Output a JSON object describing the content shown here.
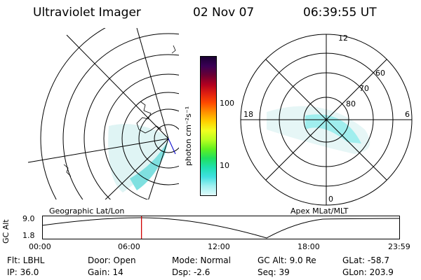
{
  "header": {
    "title": "Ultraviolet Imager",
    "date": "02 Nov 07",
    "time": "06:39:55 UT"
  },
  "colorbar": {
    "unit_label": "photon cm⁻²s⁻¹",
    "ticks": [
      "100",
      "10"
    ],
    "colors": [
      "#1a0033",
      "#3a0055",
      "#6a0033",
      "#b00020",
      "#e02010",
      "#ff4a00",
      "#ff9000",
      "#ffcf00",
      "#f0ff20",
      "#b8ff20",
      "#60f020",
      "#20e060",
      "#20e0b0",
      "#40e0e0",
      "#a0f0f0",
      "#e0fafa"
    ]
  },
  "left_map": {
    "label": "Geographic Lat/Lon"
  },
  "right_map": {
    "label": "Apex  MLat/MLT",
    "mlt_labels": {
      "top": "12",
      "left": "18",
      "right": "6",
      "bottom": "0"
    },
    "mlat_labels": [
      "60",
      "70",
      "80"
    ]
  },
  "alt_plot": {
    "ylabel": "GC Alt",
    "y_ticks": [
      "9.0",
      "1.8"
    ],
    "x_ticks": [
      "00:00",
      "06:00",
      "12:00",
      "18:00",
      "23:59"
    ],
    "current_time_marker_hours": 6.665
  },
  "footer": {
    "filter": "Flt: LBHL",
    "ip": "IP: 36.0",
    "door": "Door: Open",
    "gain": "Gain: 14",
    "mode": "Mode: Normal",
    "dsp": "Dsp:    -2.6",
    "gc_alt": "GC Alt: 9.0 Re",
    "seq": "Seq: 39",
    "glat": "GLat: -58.7",
    "glon": "GLon: 203.9"
  }
}
